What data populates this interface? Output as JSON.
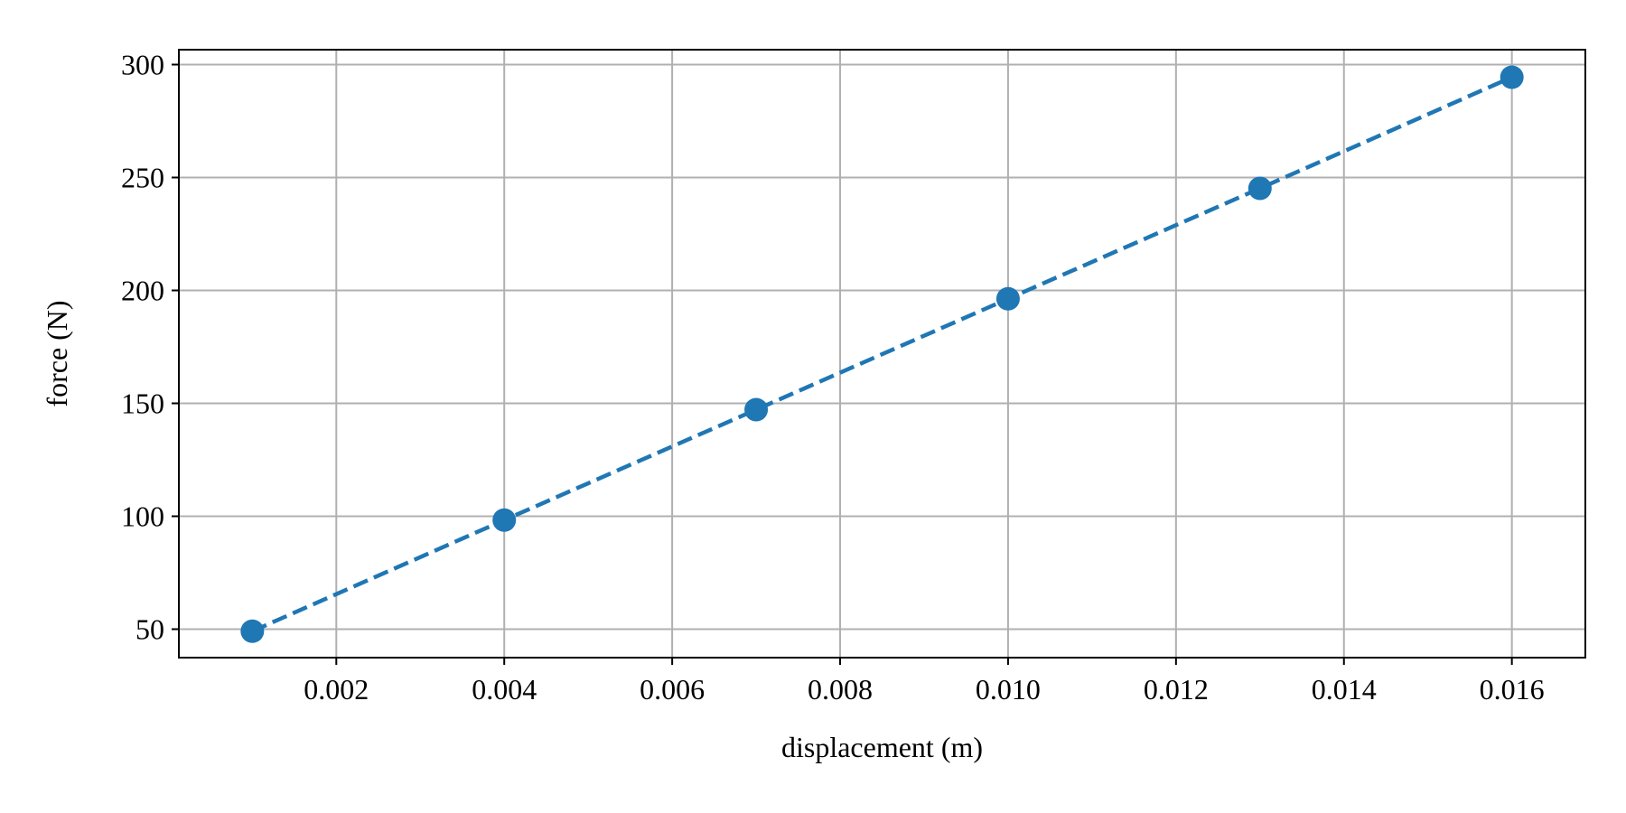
{
  "chart_data": {
    "type": "line",
    "title": "",
    "xlabel": "displacement (m)",
    "ylabel": "force (N)",
    "xlim": [
      0.000125,
      0.016875
    ],
    "ylim": [
      37.4,
      306.6
    ],
    "x_ticks": [
      0.002,
      0.004,
      0.006,
      0.008,
      0.01,
      0.012,
      0.014,
      0.016
    ],
    "x_tick_labels": [
      "0.002",
      "0.004",
      "0.006",
      "0.008",
      "0.010",
      "0.012",
      "0.014",
      "0.016"
    ],
    "y_ticks": [
      50,
      100,
      150,
      200,
      250,
      300
    ],
    "y_tick_labels": [
      "50",
      "100",
      "150",
      "200",
      "250",
      "300"
    ],
    "grid": true,
    "legend": "none",
    "series": [
      {
        "x": [
          0.001,
          0.004,
          0.007,
          0.01,
          0.013,
          0.016
        ],
        "y": [
          49.1,
          98.3,
          147.2,
          196.3,
          245.2,
          294.4
        ],
        "color": "#1f77b4",
        "line_style": "dashed",
        "marker": "circle"
      }
    ]
  }
}
